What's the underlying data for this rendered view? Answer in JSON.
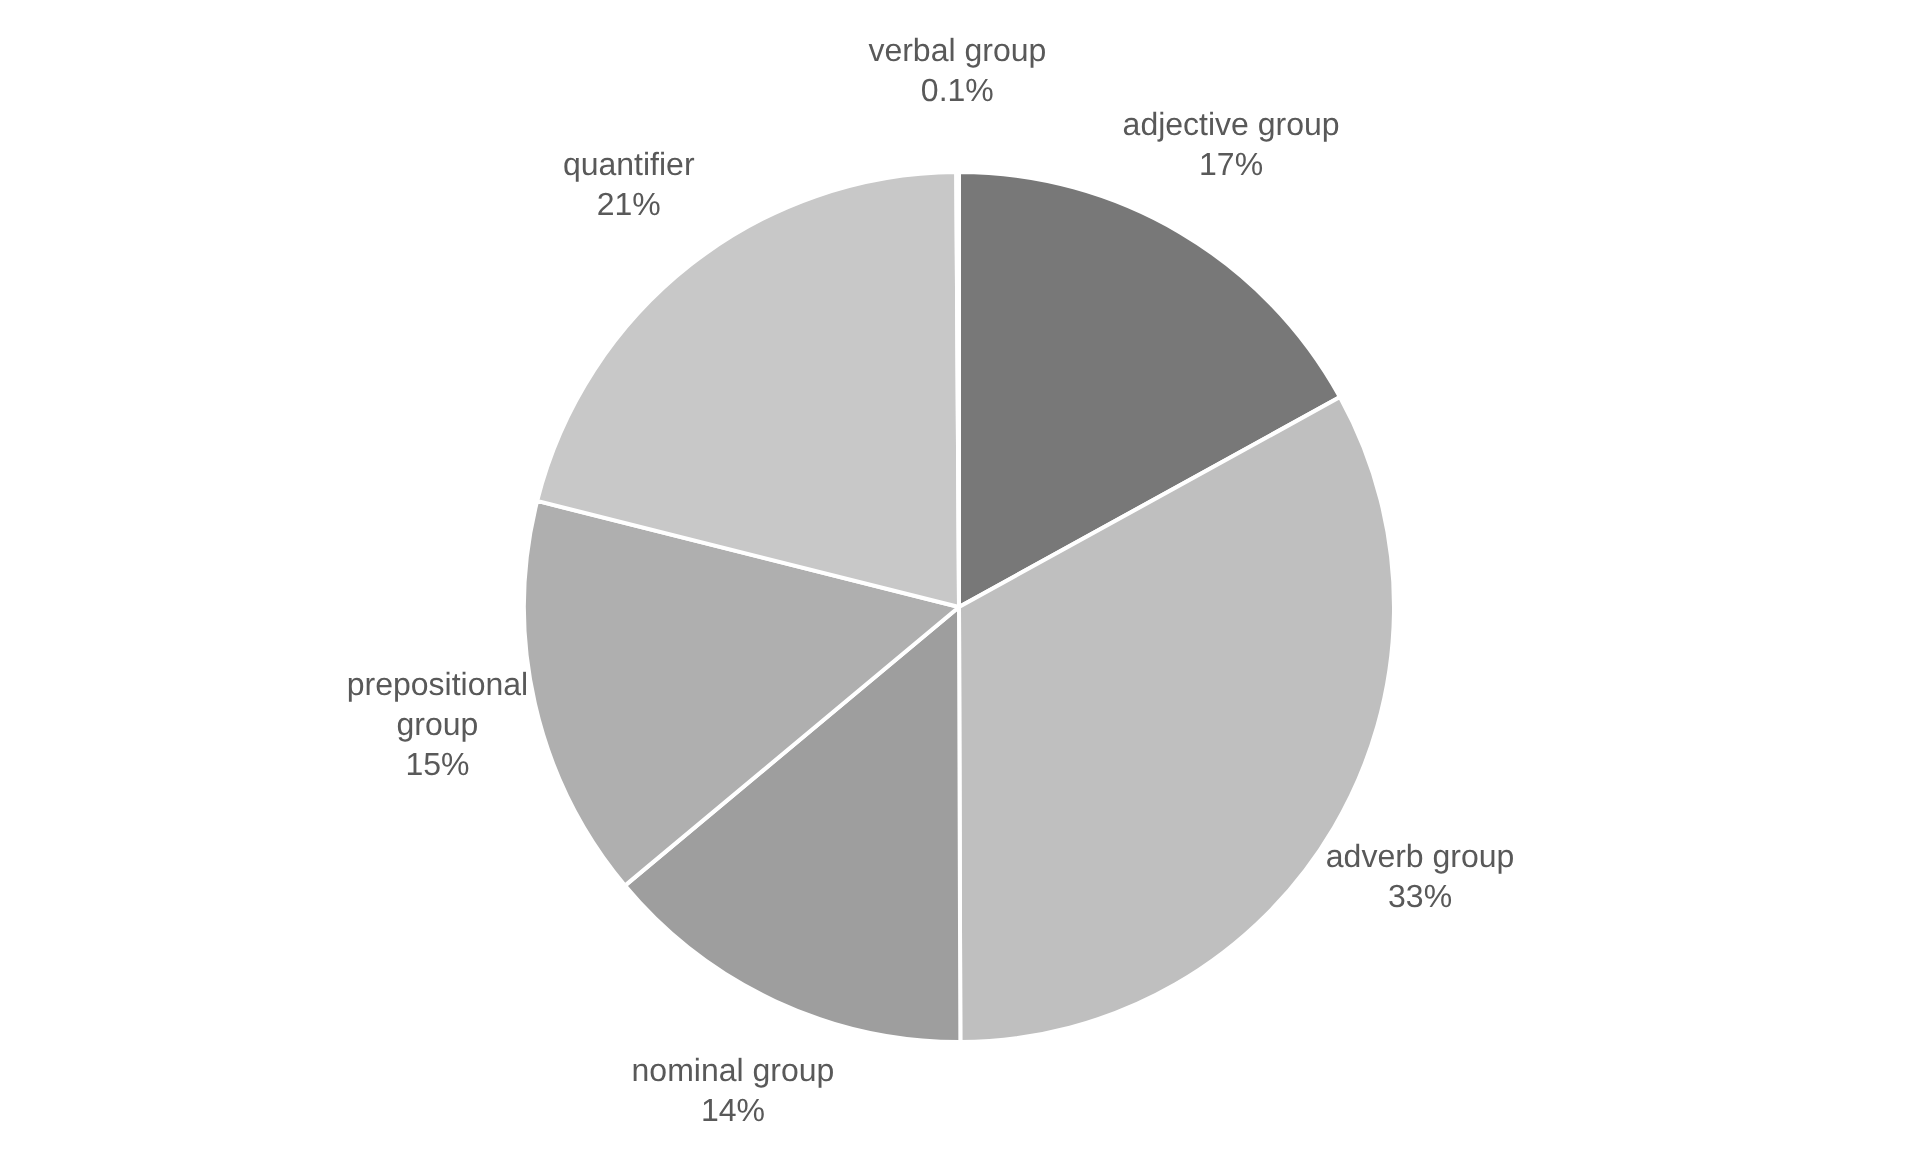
{
  "chart_data": {
    "type": "pie",
    "categories": [
      "adjective group",
      "adverb group",
      "nominal group",
      "prepositional group",
      "quantifier",
      "verbal group"
    ],
    "values": [
      17,
      33,
      14,
      15,
      21,
      0.1
    ],
    "colors": [
      "#787878",
      "#bfbfbf",
      "#9e9e9e",
      "#afafaf",
      "#c8c8c8",
      "#a5a5a5"
    ],
    "value_labels": [
      "17%",
      "33%",
      "14%",
      "15%",
      "21%",
      "0.1%"
    ],
    "legend": false
  }
}
